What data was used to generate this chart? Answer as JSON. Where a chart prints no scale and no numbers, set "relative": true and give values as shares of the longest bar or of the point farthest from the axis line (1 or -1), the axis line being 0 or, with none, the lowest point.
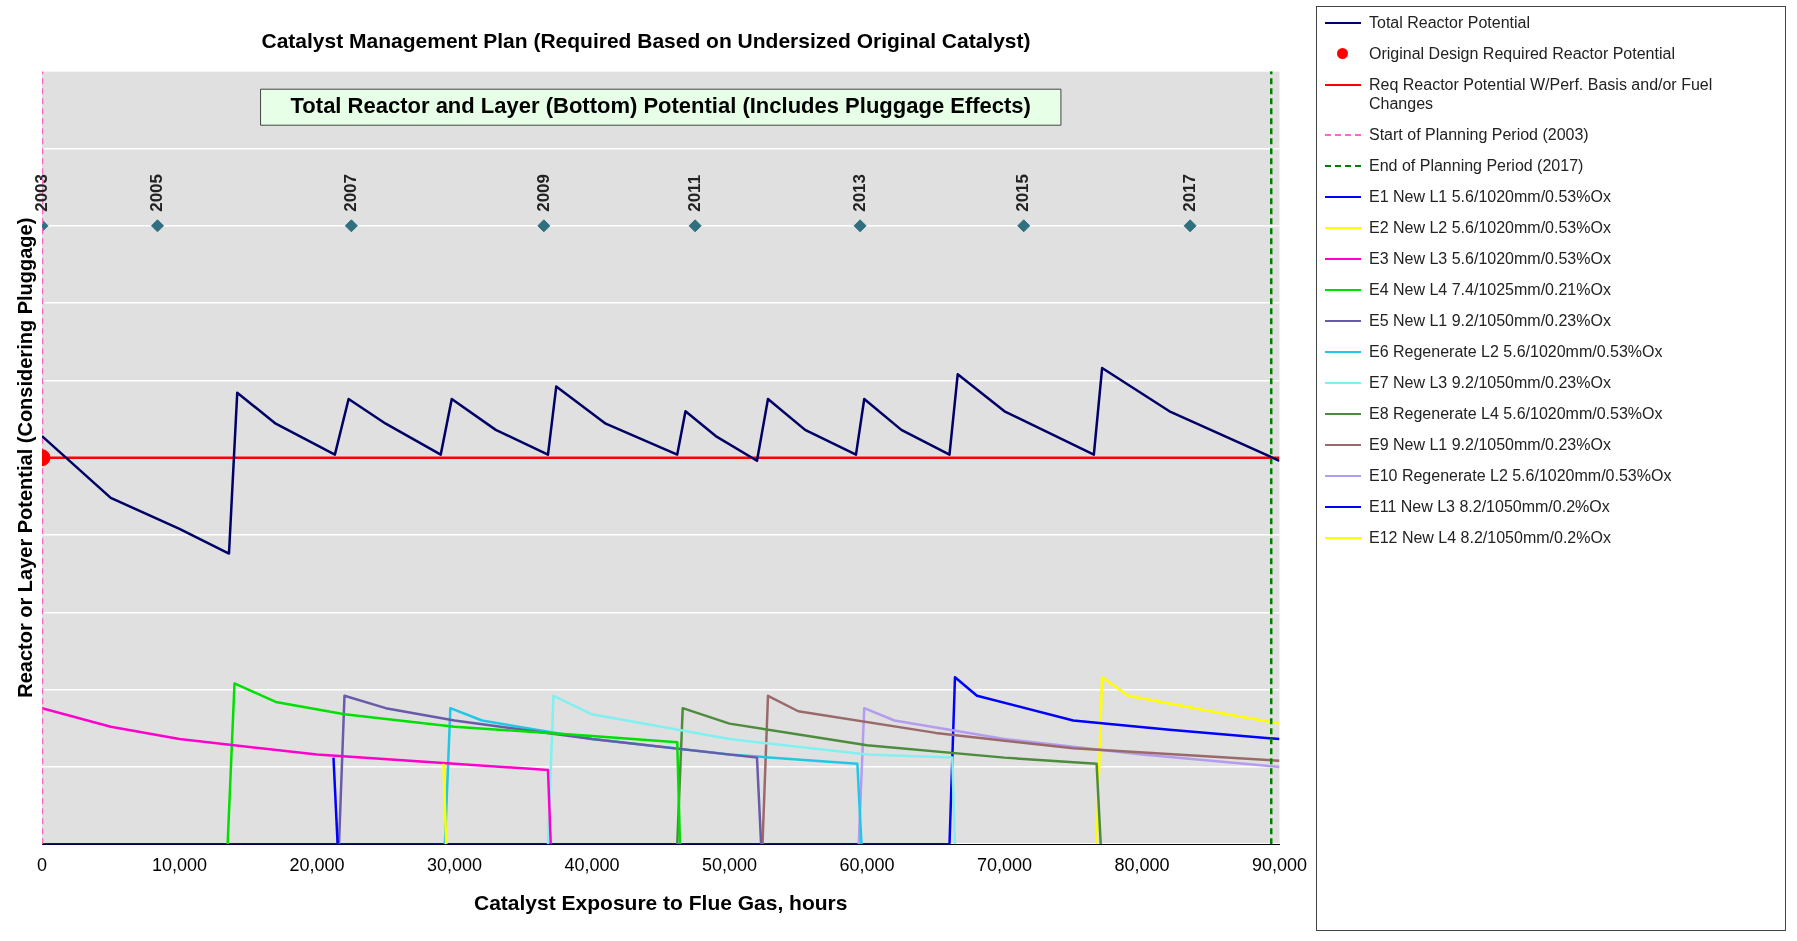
{
  "chart_data": {
    "type": "line",
    "title": "Catalyst Management Plan (Required Based on Undersized Original Catalyst)",
    "xlabel": "Catalyst Exposure to Flue Gas, hours",
    "ylabel": "Reactor or Layer Potential (Considering Pluggage)",
    "relative": true,
    "grid": "y",
    "legend": "right",
    "tick_labels": "x",
    "marker": "none",
    "line_style": "solid",
    "xlim": [
      0,
      90000
    ],
    "xticks": [
      0,
      {
        "value": 10000,
        "label": "10,000"
      },
      {
        "value": 20000,
        "label": "20,000"
      },
      {
        "value": 30000,
        "label": "30,000"
      },
      {
        "value": 40000,
        "label": "40,000"
      },
      {
        "value": 50000,
        "label": "50,000"
      },
      {
        "value": 60000,
        "label": "60,000"
      },
      {
        "value": 70000,
        "label": "70,000"
      },
      {
        "value": 80000,
        "label": "80,000"
      },
      {
        "value": 90000,
        "label": "90,000"
      }
    ],
    "annotations": [
      "Total Reactor and Layer (Bottom) Potential (Includes Pluggage Effects)",
      {
        "text": "2003",
        "x": 0,
        "y": 0.8
      },
      {
        "text": "2005",
        "x": 8400,
        "y": 0.8
      },
      {
        "text": "2007",
        "x": 22500,
        "y": 0.8
      },
      {
        "text": "2009",
        "x": 36500,
        "y": 0.8
      },
      {
        "text": "2011",
        "x": 47500,
        "y": 0.8
      },
      {
        "text": "2013",
        "x": 59500,
        "y": 0.8
      },
      {
        "text": "2015",
        "x": 71400,
        "y": 0.8
      },
      {
        "text": "2017",
        "x": 83500,
        "y": 0.8
      }
    ],
    "series": [
      {
        "name": "Total Reactor Potential",
        "color": "#000066",
        "x": [
          0,
          5000,
          10000,
          13600,
          14200,
          17000,
          21300,
          22300,
          25000,
          29000,
          29800,
          33000,
          36800,
          37400,
          41000,
          46200,
          46800,
          49000,
          52000,
          52800,
          55500,
          59200,
          59800,
          62500,
          66000,
          66600,
          70000,
          76500,
          77100,
          82000,
          90000
        ],
        "values": [
          0.528,
          0.448,
          0.408,
          0.376,
          0.584,
          0.544,
          0.504,
          0.576,
          0.544,
          0.504,
          0.576,
          0.536,
          0.504,
          0.592,
          0.544,
          0.504,
          0.56,
          0.528,
          0.496,
          0.576,
          0.536,
          0.504,
          0.576,
          0.536,
          0.504,
          0.608,
          0.56,
          0.504,
          0.616,
          0.56,
          0.496
        ]
      },
      {
        "name": "Original Design Required Reactor Potential",
        "type": "scatter",
        "marker": "circle",
        "color": "#ff0000",
        "x": [
          0
        ],
        "values": [
          0.5
        ]
      },
      {
        "name": "Req Reactor Potential W/Perf. Basis and/or Fuel Changes",
        "color": "#ff0000",
        "x": [
          0,
          90000
        ],
        "values": [
          0.5,
          0.5
        ]
      },
      {
        "name": "Start of Planning Period (2003)",
        "color": "#ff66cc",
        "line_style": "dashed",
        "x": [
          0,
          0
        ],
        "values": [
          0,
          1
        ]
      },
      {
        "name": "End of Planning Period (2017)",
        "color": "#008000",
        "line_style": "dashed",
        "x": [
          89400,
          89400
        ],
        "values": [
          0,
          1
        ]
      },
      {
        "name": "E1 New L1 5.6/1020mm/0.53%Ox",
        "color": "#0000ff",
        "x": [
          21200,
          21500
        ],
        "values": [
          0.112,
          0
        ]
      },
      {
        "name": "E2 New L2 5.6/1020mm/0.53%Ox",
        "color": "#ffff00",
        "x": [
          29200,
          29400
        ],
        "values": [
          0.104,
          0
        ]
      },
      {
        "name": "E3 New L3 5.6/1020mm/0.53%Ox",
        "color": "#ff00cc",
        "x": [
          0,
          5000,
          10000,
          20000,
          30000,
          36800,
          37000
        ],
        "values": [
          0.176,
          0.152,
          0.136,
          0.116,
          0.104,
          0.096,
          0
        ]
      },
      {
        "name": "E4 New L4 7.4/1025mm/0.21%Ox",
        "color": "#00e000",
        "x": [
          13500,
          14000,
          17000,
          22000,
          30000,
          40000,
          46200,
          46400
        ],
        "values": [
          0,
          0.208,
          0.184,
          0.168,
          0.152,
          0.14,
          0.132,
          0
        ]
      },
      {
        "name": "E5 New L1 9.2/1050mm/0.23%Ox",
        "color": "#6a5aaa",
        "x": [
          21600,
          22000,
          25000,
          30000,
          40000,
          52000,
          52300
        ],
        "values": [
          0,
          0.192,
          0.176,
          0.16,
          0.136,
          0.112,
          0
        ]
      },
      {
        "name": "E6 Regenerate L2 5.6/1020mm/0.53%Ox",
        "color": "#1ec8e6",
        "x": [
          29300,
          29700,
          32000,
          40000,
          50000,
          59300,
          59600
        ],
        "values": [
          0,
          0.176,
          0.16,
          0.136,
          0.116,
          0.104,
          0
        ]
      },
      {
        "name": "E7 New L3 9.2/1050mm/0.23%Ox",
        "color": "#80f0f0",
        "x": [
          36800,
          37200,
          40000,
          50000,
          60000,
          66200,
          66400
        ],
        "values": [
          0,
          0.192,
          0.168,
          0.136,
          0.116,
          0.112,
          0
        ]
      },
      {
        "name": "E8 Regenerate L4 5.6/1020mm/0.53%Ox",
        "color": "#4c8c3c",
        "x": [
          46200,
          46600,
          50000,
          60000,
          70000,
          76700,
          77000
        ],
        "values": [
          0,
          0.176,
          0.156,
          0.128,
          0.112,
          0.104,
          0
        ]
      },
      {
        "name": "E9 New L1 9.2/1050mm/0.23%Ox",
        "color": "#9a6a6a",
        "x": [
          52400,
          52800,
          55000,
          65000,
          75000,
          90000
        ],
        "values": [
          0,
          0.192,
          0.172,
          0.144,
          0.124,
          0.108
        ]
      },
      {
        "name": "E10 Regenerate L2 5.6/1020mm/0.53%Ox",
        "color": "#b49cf0",
        "x": [
          59400,
          59800,
          62000,
          70000,
          80000,
          90000
        ],
        "values": [
          0,
          0.176,
          0.16,
          0.136,
          0.116,
          0.1
        ]
      },
      {
        "name": "E11 New L3 8.2/1050mm/0.2%Ox",
        "color": "#0000ff",
        "x": [
          0,
          66000,
          66400,
          68000,
          75000,
          82000,
          90000
        ],
        "values": [
          0,
          0,
          0.216,
          0.192,
          0.16,
          0.148,
          0.136
        ]
      },
      {
        "name": "E12 New L4 8.2/1050mm/0.2%Ox",
        "color": "#ffff00",
        "x": [
          76700,
          77100,
          79000,
          85000,
          90000
        ],
        "values": [
          0,
          0.216,
          0.192,
          0.172,
          0.156
        ]
      },
      {
        "type": "scatter",
        "marker": "diamond",
        "color": "#2f6f7f",
        "x": [
          0,
          8400,
          22500,
          36500,
          47500,
          59500,
          71400,
          83500
        ],
        "values": [
          0.8,
          0.8,
          0.8,
          0.8,
          0.8,
          0.8,
          0.8,
          0.8
        ]
      }
    ]
  }
}
